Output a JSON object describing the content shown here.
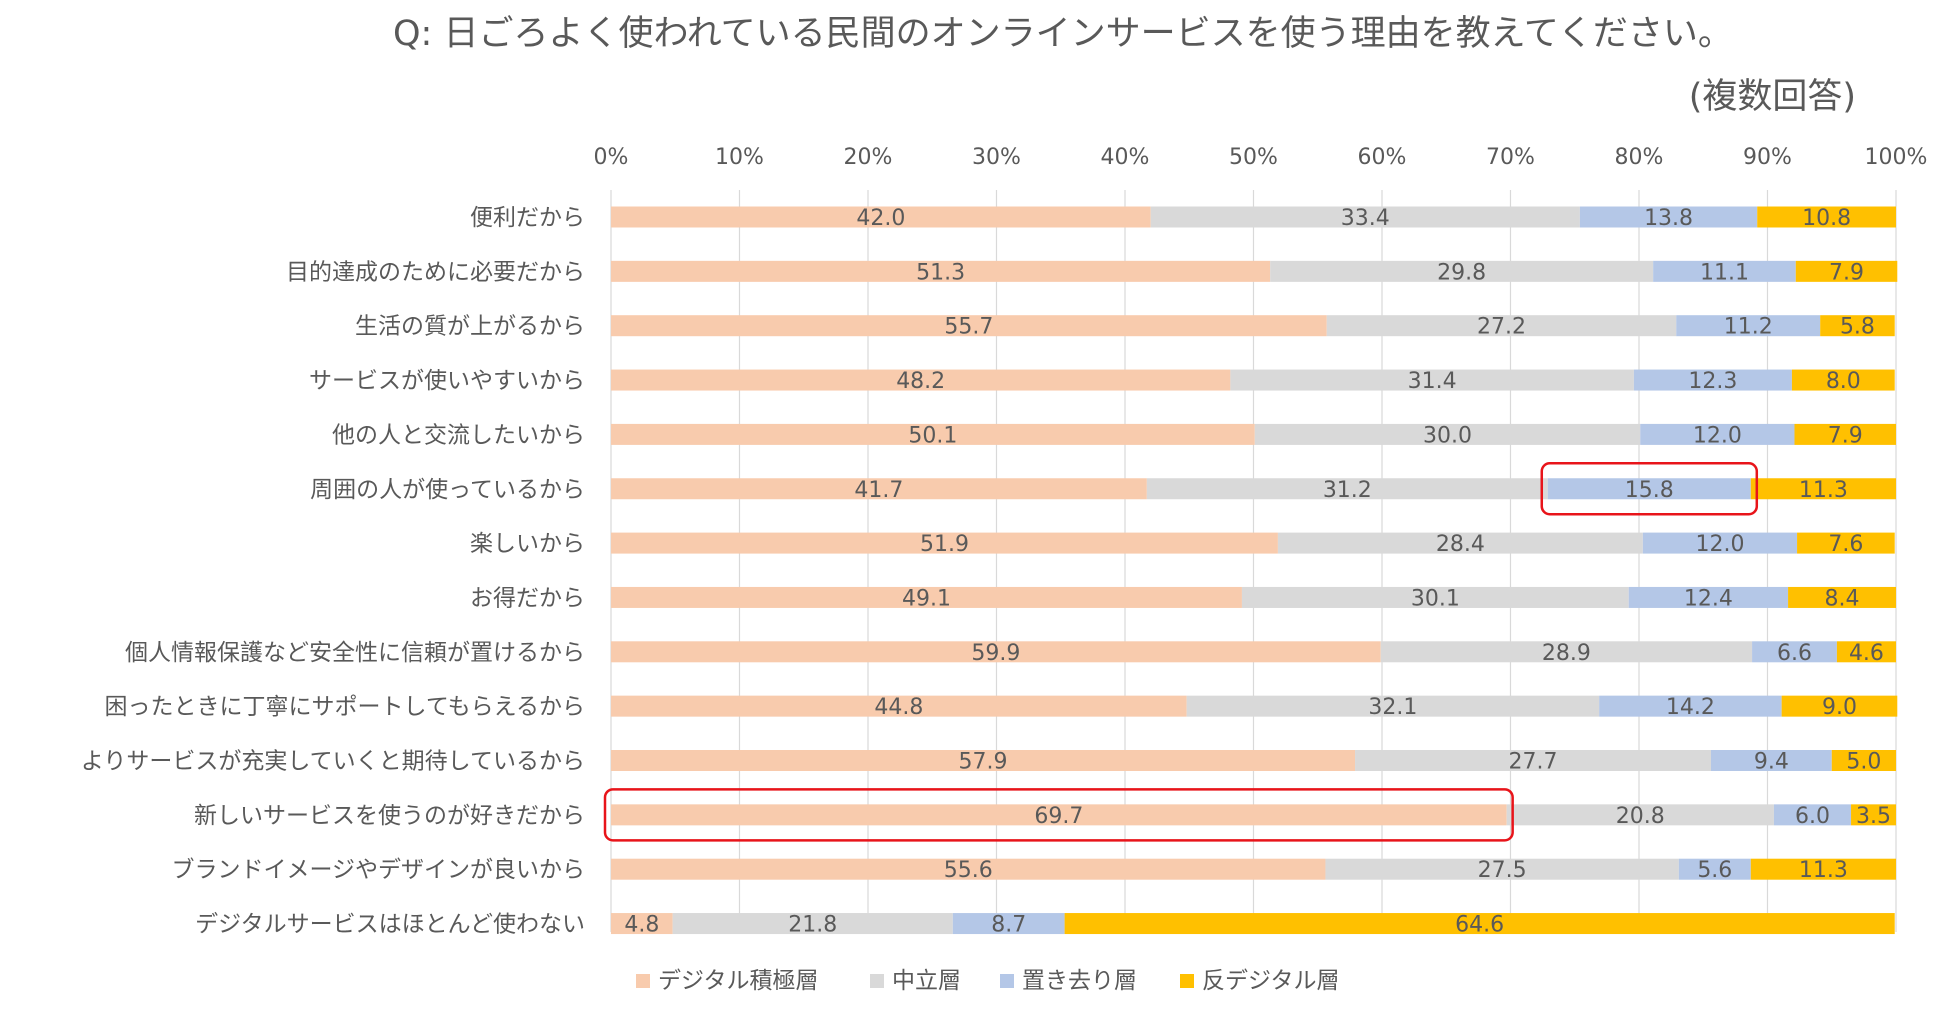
{
  "colors": {
    "デジタル積極層": "#f8cbad",
    "中立層": "#d9d9d9",
    "置き去り層": "#b4c7e7",
    "反デジタル層": "#ffc000",
    "highlight": "#e8141a"
  },
  "chart_data": {
    "type": "bar",
    "orientation": "horizontal",
    "stacked": "percent",
    "title": "Q: 日ごろよく使われている民間のオンラインサービスを使う理由を教えてください。",
    "subtitle": "(複数回答)",
    "xlim": [
      0,
      100
    ],
    "x_ticks": [
      "0%",
      "10%",
      "20%",
      "30%",
      "40%",
      "50%",
      "60%",
      "70%",
      "80%",
      "90%",
      "100%"
    ],
    "grid": true,
    "legend_position": "bottom",
    "categories": [
      "便利だから",
      "目的達成のために必要だから",
      "生活の質が上がるから",
      "サービスが使いやすいから",
      "他の人と交流したいから",
      "周囲の人が使っているから",
      "楽しいから",
      "お得だから",
      "個人情報保護など安全性に信頼が置けるから",
      "困ったときに丁寧にサポートしてもらえるから",
      "よりサービスが充実していくと期待しているから",
      "新しいサービスを使うのが好きだから",
      "ブランドイメージやデザインが良いから",
      "デジタルサービスはほとんど使わない"
    ],
    "series": [
      {
        "name": "デジタル積極層",
        "values": [
          42.0,
          51.3,
          55.7,
          48.2,
          50.1,
          41.7,
          51.9,
          49.1,
          59.9,
          44.8,
          57.9,
          69.7,
          55.6,
          4.8
        ]
      },
      {
        "name": "中立層",
        "values": [
          33.4,
          29.8,
          27.2,
          31.4,
          30.0,
          31.2,
          28.4,
          30.1,
          28.9,
          32.1,
          27.7,
          20.8,
          27.5,
          21.8
        ]
      },
      {
        "name": "置き去り層",
        "values": [
          13.8,
          11.1,
          11.2,
          12.3,
          12.0,
          15.8,
          12.0,
          12.4,
          6.6,
          14.2,
          9.4,
          6.0,
          5.6,
          8.7
        ]
      },
      {
        "name": "反デジタル層",
        "values": [
          10.8,
          7.9,
          5.8,
          8.0,
          7.9,
          11.3,
          7.6,
          8.4,
          4.6,
          9.0,
          5.0,
          3.5,
          11.3,
          64.6
        ]
      }
    ],
    "highlights": [
      {
        "category": "周囲の人が使っているから",
        "series": "置き去り層"
      },
      {
        "category": "新しいサービスを使うのが好きだから",
        "series": "デジタル積極層"
      }
    ]
  }
}
